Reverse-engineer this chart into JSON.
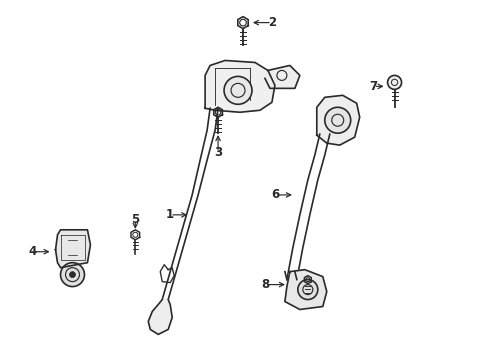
{
  "background_color": "#ffffff",
  "line_color": "#2a2a2a",
  "figsize": [
    4.9,
    3.6
  ],
  "dpi": 100,
  "label_fontsize": 8.5
}
